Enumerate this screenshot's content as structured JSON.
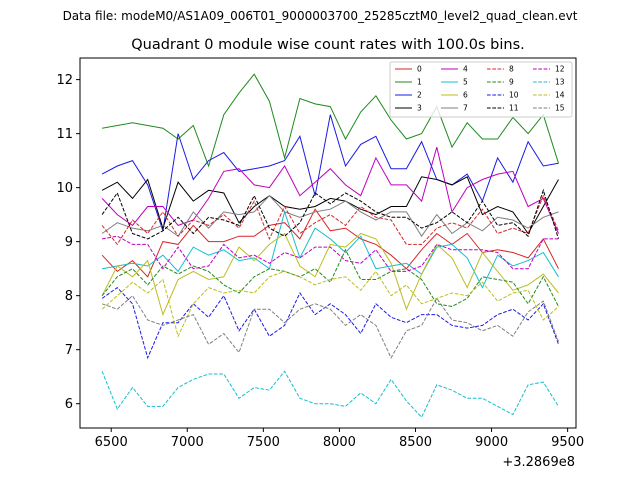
{
  "chart_data": {
    "type": "line",
    "suptitle": "Data file: modeM0/AS1A09_006T01_9000003700_25285cztM0_level2_quad_clean.evt",
    "title": "Quadrant 0 module wise count rates with 100.0s bins.",
    "xlabel": "",
    "ylabel": "",
    "x_offset_label": "+3.2869e8",
    "xlim": [
      6295,
      9555
    ],
    "ylim": [
      5.55,
      12.4
    ],
    "xticks": [
      6500,
      7000,
      7500,
      8000,
      8500,
      9000,
      9500
    ],
    "yticks": [
      6,
      7,
      8,
      9,
      10,
      11,
      12
    ],
    "legend_position": "top-right",
    "x": [
      6440,
      6540,
      6640,
      6740,
      6840,
      6940,
      7040,
      7140,
      7240,
      7340,
      7440,
      7540,
      7640,
      7740,
      7840,
      7940,
      8040,
      8140,
      8240,
      8340,
      8440,
      8540,
      8640,
      8740,
      8840,
      8940,
      9040,
      9140,
      9240,
      9340,
      9440
    ],
    "series": [
      {
        "name": "0",
        "color": "#d62728",
        "dash": "solid",
        "values": [
          8.75,
          8.45,
          8.65,
          8.35,
          9.0,
          8.95,
          9.3,
          9.0,
          9.0,
          9.1,
          9.1,
          9.3,
          9.35,
          9.05,
          9.6,
          9.2,
          9.25,
          9.05,
          8.95,
          8.75,
          8.5,
          8.85,
          9.15,
          8.95,
          9.15,
          8.8,
          8.85,
          8.8,
          8.7,
          9.05,
          8.5
        ]
      },
      {
        "name": "1",
        "color": "#1f8a1f",
        "dash": "solid",
        "values": [
          11.1,
          11.15,
          11.2,
          11.15,
          11.1,
          10.9,
          11.15,
          10.4,
          11.35,
          11.75,
          12.1,
          11.6,
          10.55,
          11.65,
          11.55,
          11.5,
          10.9,
          11.4,
          11.7,
          11.25,
          10.9,
          11.0,
          11.5,
          10.75,
          11.2,
          10.9,
          10.9,
          11.3,
          11.0,
          11.35,
          10.45
        ]
      },
      {
        "name": "2",
        "color": "#1a1ae6",
        "dash": "solid",
        "values": [
          10.25,
          10.4,
          10.5,
          10.05,
          9.2,
          11.0,
          10.15,
          10.5,
          10.65,
          10.3,
          10.35,
          10.4,
          10.5,
          10.95,
          9.85,
          11.35,
          10.4,
          10.8,
          10.95,
          10.35,
          10.35,
          10.85,
          10.15,
          10.05,
          10.25,
          9.75,
          10.55,
          10.1,
          10.85,
          10.4,
          10.45
        ]
      },
      {
        "name": "3",
        "color": "#000000",
        "dash": "solid",
        "values": [
          9.95,
          10.1,
          9.8,
          10.15,
          9.25,
          10.1,
          9.75,
          9.95,
          9.9,
          9.35,
          9.65,
          9.85,
          9.65,
          9.6,
          9.65,
          9.8,
          9.75,
          9.6,
          9.5,
          9.65,
          9.65,
          10.2,
          10.15,
          10.05,
          10.2,
          9.5,
          9.65,
          9.55,
          9.15,
          9.65,
          10.15
        ]
      },
      {
        "name": "4",
        "color": "#bf00bf",
        "dash": "solid",
        "values": [
          9.8,
          9.5,
          9.3,
          9.65,
          9.65,
          9.3,
          9.4,
          9.8,
          10.3,
          10.35,
          10.05,
          10.0,
          10.4,
          9.85,
          10.1,
          10.35,
          10.05,
          9.85,
          10.55,
          10.05,
          10.05,
          9.75,
          10.75,
          9.55,
          10.0,
          10.15,
          10.25,
          10.3,
          9.65,
          9.8,
          9.15
        ]
      },
      {
        "name": "5",
        "color": "#17becf",
        "dash": "solid",
        "values": [
          8.5,
          8.55,
          8.6,
          8.55,
          8.75,
          8.45,
          8.9,
          8.75,
          8.85,
          8.65,
          8.7,
          8.5,
          9.55,
          8.7,
          9.25,
          9.05,
          8.8,
          9.1,
          8.5,
          8.55,
          8.6,
          8.4,
          8.9,
          8.95,
          8.7,
          8.15,
          8.75,
          8.55,
          8.65,
          8.8,
          8.35
        ]
      },
      {
        "name": "6",
        "color": "#bcbd22",
        "dash": "solid",
        "values": [
          8.0,
          8.55,
          8.35,
          8.65,
          7.65,
          8.3,
          8.45,
          8.3,
          8.35,
          8.9,
          8.65,
          8.95,
          9.15,
          8.55,
          8.35,
          8.95,
          8.9,
          9.15,
          9.05,
          8.6,
          7.75,
          8.4,
          8.95,
          8.7,
          8.15,
          8.8,
          8.45,
          8.1,
          8.2,
          8.4,
          8.05
        ]
      },
      {
        "name": "7",
        "color": "#7f7f7f",
        "dash": "solid",
        "values": [
          9.15,
          9.35,
          9.25,
          9.2,
          9.3,
          9.1,
          9.55,
          9.25,
          9.55,
          9.5,
          9.55,
          9.85,
          9.55,
          9.45,
          9.55,
          9.6,
          9.75,
          9.55,
          9.4,
          9.55,
          9.55,
          9.1,
          9.5,
          9.15,
          9.35,
          9.2,
          9.45,
          9.4,
          9.25,
          9.45,
          9.55
        ]
      },
      {
        "name": "8",
        "color": "#d62728",
        "dash": "dashed",
        "values": [
          9.3,
          8.95,
          9.4,
          9.15,
          9.55,
          9.1,
          9.4,
          9.3,
          9.5,
          9.25,
          9.75,
          9.05,
          9.65,
          9.15,
          9.35,
          9.5,
          9.3,
          9.65,
          9.45,
          9.4,
          8.95,
          8.95,
          9.25,
          9.35,
          9.25,
          9.6,
          9.15,
          9.25,
          9.15,
          9.85,
          9.2
        ]
      },
      {
        "name": "9",
        "color": "#1f8a1f",
        "dash": "dashed",
        "values": [
          8.0,
          8.35,
          8.5,
          8.2,
          8.55,
          8.4,
          8.55,
          8.45,
          8.2,
          8.05,
          8.35,
          8.5,
          8.45,
          8.35,
          8.5,
          8.25,
          8.85,
          8.3,
          8.3,
          8.45,
          8.5,
          8.3,
          7.85,
          7.8,
          7.95,
          8.35,
          8.3,
          8.25,
          7.85,
          8.35,
          7.8
        ]
      },
      {
        "name": "10",
        "color": "#1a1ae6",
        "dash": "dashed",
        "values": [
          7.95,
          8.15,
          7.85,
          6.85,
          7.5,
          7.5,
          7.85,
          7.6,
          8.0,
          7.35,
          7.75,
          7.25,
          7.45,
          8.05,
          7.65,
          7.85,
          7.65,
          7.3,
          7.85,
          7.6,
          7.5,
          7.65,
          7.65,
          7.45,
          7.4,
          7.45,
          7.65,
          7.75,
          7.55,
          7.85,
          7.1
        ]
      },
      {
        "name": "11",
        "color": "#000000",
        "dash": "dashed",
        "values": [
          9.5,
          9.9,
          9.15,
          9.05,
          9.2,
          9.45,
          9.15,
          9.45,
          9.4,
          9.3,
          9.85,
          9.25,
          9.1,
          9.35,
          9.9,
          9.7,
          9.9,
          9.75,
          9.55,
          9.45,
          9.45,
          9.25,
          9.35,
          9.55,
          9.35,
          9.75,
          9.3,
          9.35,
          9.1,
          9.95,
          9.05
        ]
      },
      {
        "name": "12",
        "color": "#bf00bf",
        "dash": "dashed",
        "values": [
          9.05,
          9.1,
          8.95,
          8.95,
          8.5,
          8.9,
          8.5,
          8.55,
          8.95,
          8.7,
          8.75,
          8.6,
          8.8,
          8.7,
          8.9,
          8.9,
          8.65,
          8.6,
          8.85,
          8.45,
          8.45,
          8.55,
          8.95,
          8.85,
          8.85,
          8.85,
          8.8,
          8.5,
          8.5,
          9.05,
          9.05
        ]
      },
      {
        "name": "13",
        "color": "#17becf",
        "dash": "dashed",
        "values": [
          6.6,
          5.9,
          6.3,
          5.95,
          5.95,
          6.3,
          6.45,
          6.55,
          6.55,
          6.1,
          6.3,
          6.25,
          6.6,
          6.1,
          6.0,
          6.0,
          5.95,
          6.2,
          6.0,
          6.45,
          6.05,
          5.75,
          6.35,
          6.25,
          6.1,
          6.1,
          5.95,
          5.8,
          6.35,
          6.4,
          5.95
        ]
      },
      {
        "name": "14",
        "color": "#bcbd22",
        "dash": "dashed",
        "values": [
          7.75,
          8.0,
          8.25,
          8.05,
          8.3,
          7.25,
          7.85,
          8.15,
          8.05,
          8.1,
          8.05,
          8.35,
          8.45,
          8.35,
          8.2,
          8.3,
          8.35,
          8.1,
          8.45,
          8.0,
          8.2,
          7.85,
          7.95,
          8.05,
          8.0,
          8.25,
          7.9,
          8.05,
          8.1,
          7.55,
          7.8
        ]
      },
      {
        "name": "15",
        "color": "#7f7f7f",
        "dash": "dashed",
        "values": [
          7.85,
          7.75,
          8.0,
          7.55,
          7.45,
          7.55,
          7.65,
          7.1,
          7.3,
          6.95,
          7.75,
          7.75,
          7.5,
          7.75,
          7.85,
          7.75,
          7.45,
          7.65,
          7.45,
          6.85,
          7.35,
          7.45,
          7.95,
          7.55,
          7.5,
          7.35,
          7.45,
          7.25,
          7.7,
          7.9,
          7.15
        ]
      }
    ]
  }
}
